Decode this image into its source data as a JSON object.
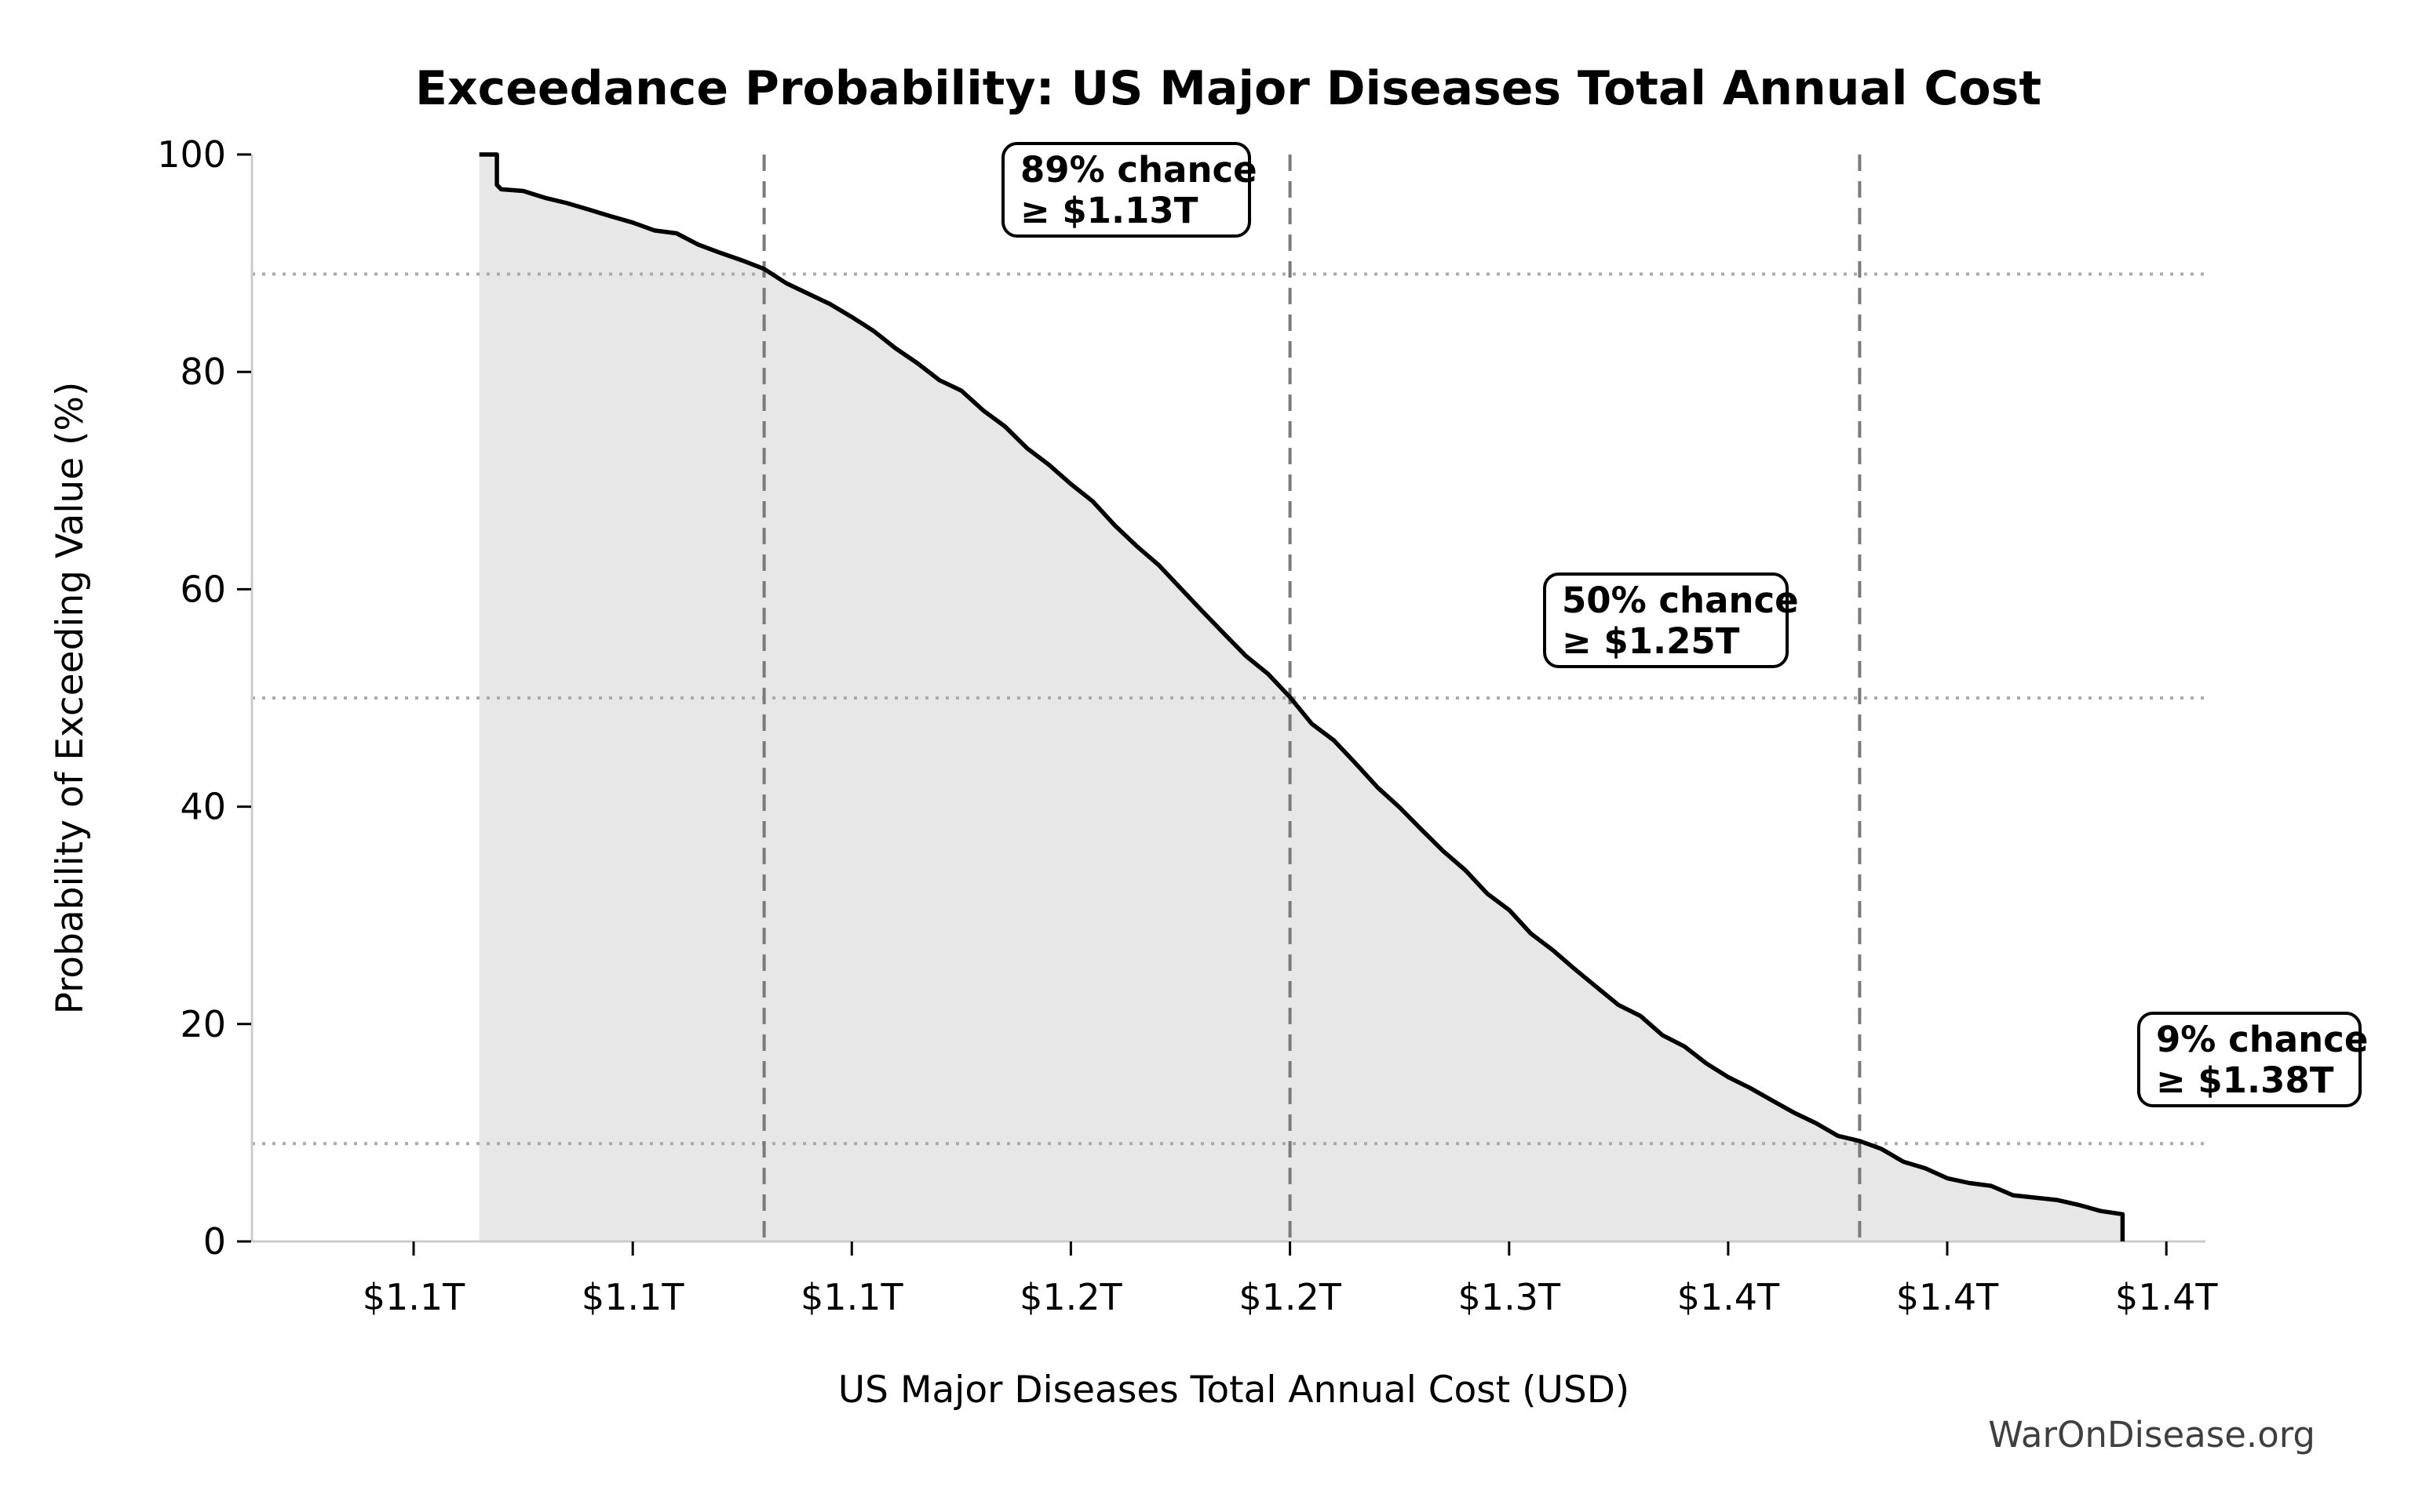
{
  "title": "Exceedance Probability: US Major Diseases Total Annual Cost",
  "watermark": "WarOnDisease.org",
  "colors": {
    "curve": "#000000",
    "area_fill": "#e7e7e7",
    "dashed_line": "#7a7a7a",
    "dotted_line": "#ababab",
    "spine": "#cccccc",
    "tick": "#000000",
    "annotation_border": "#000000",
    "annotation_bg": "#ffffff",
    "watermark": "#3f3f3f"
  },
  "chart_data": {
    "type": "line",
    "title": "Exceedance Probability: US Major Diseases Total Annual Cost",
    "xlabel": "US Major Diseases Total Annual Cost (USD)",
    "ylabel": "Probability of Exceeding Value (%)",
    "x_unit": "trillion_usd",
    "xlim": [
      1.013,
      1.459
    ],
    "ylim": [
      0,
      100
    ],
    "grid": "reference-lines-only",
    "x_ticks": {
      "values": [
        1.05,
        1.1,
        1.15,
        1.2,
        1.25,
        1.3,
        1.35,
        1.4,
        1.45
      ],
      "labels": [
        "$1.1T",
        "$1.1T",
        "$1.1T",
        "$1.2T",
        "$1.2T",
        "$1.3T",
        "$1.4T",
        "$1.4T",
        "$1.4T"
      ]
    },
    "y_ticks": {
      "values": [
        0,
        20,
        40,
        60,
        80,
        100
      ],
      "labels": [
        "0",
        "20",
        "40",
        "60",
        "80",
        "100"
      ]
    },
    "reference_lines": {
      "vertical_dashed_x": [
        1.13,
        1.25,
        1.38
      ],
      "horizontal_dotted_y": [
        89,
        50,
        9
      ]
    },
    "annotations": [
      {
        "line1": "89% chance",
        "line2": "≥ $1.13T",
        "x": 1.13,
        "y": 89
      },
      {
        "line1": "50% chance",
        "line2": "≥ $1.25T",
        "x": 1.25,
        "y": 50
      },
      {
        "line1": "9% chance",
        "line2": "≥ $1.38T",
        "x": 1.38,
        "y": 9
      }
    ],
    "series": [
      {
        "name": "exceedance-curve",
        "points": [
          [
            1.065,
            100
          ],
          [
            1.069,
            100
          ],
          [
            1.069,
            97.2
          ],
          [
            1.07,
            96.8
          ],
          [
            1.075,
            96.4
          ],
          [
            1.08,
            96.0
          ],
          [
            1.085,
            95.5
          ],
          [
            1.09,
            95.0
          ],
          [
            1.095,
            94.5
          ],
          [
            1.1,
            93.9
          ],
          [
            1.105,
            93.3
          ],
          [
            1.11,
            92.6
          ],
          [
            1.115,
            91.8
          ],
          [
            1.12,
            91.0
          ],
          [
            1.125,
            90.1
          ],
          [
            1.13,
            89.2
          ],
          [
            1.135,
            88.2
          ],
          [
            1.14,
            87.2
          ],
          [
            1.145,
            86.1
          ],
          [
            1.15,
            84.9
          ],
          [
            1.155,
            83.6
          ],
          [
            1.16,
            82.3
          ],
          [
            1.165,
            80.9
          ],
          [
            1.17,
            79.5
          ],
          [
            1.175,
            78.0
          ],
          [
            1.18,
            76.5
          ],
          [
            1.185,
            74.9
          ],
          [
            1.19,
            73.2
          ],
          [
            1.195,
            71.5
          ],
          [
            1.2,
            69.7
          ],
          [
            1.205,
            67.9
          ],
          [
            1.21,
            66.0
          ],
          [
            1.215,
            64.1
          ],
          [
            1.22,
            62.1
          ],
          [
            1.225,
            60.2
          ],
          [
            1.23,
            58.2
          ],
          [
            1.235,
            56.2
          ],
          [
            1.24,
            54.1
          ],
          [
            1.245,
            52.1
          ],
          [
            1.25,
            50.0
          ],
          [
            1.255,
            47.9
          ],
          [
            1.26,
            45.9
          ],
          [
            1.265,
            43.8
          ],
          [
            1.27,
            41.8
          ],
          [
            1.275,
            39.8
          ],
          [
            1.28,
            37.9
          ],
          [
            1.285,
            35.9
          ],
          [
            1.29,
            34.0
          ],
          [
            1.295,
            32.1
          ],
          [
            1.3,
            30.3
          ],
          [
            1.305,
            28.5
          ],
          [
            1.31,
            26.8
          ],
          [
            1.315,
            25.1
          ],
          [
            1.32,
            23.5
          ],
          [
            1.325,
            22.0
          ],
          [
            1.33,
            20.5
          ],
          [
            1.335,
            19.1
          ],
          [
            1.34,
            17.7
          ],
          [
            1.345,
            16.4
          ],
          [
            1.35,
            15.1
          ],
          [
            1.355,
            13.9
          ],
          [
            1.36,
            12.8
          ],
          [
            1.365,
            11.8
          ],
          [
            1.37,
            10.8
          ],
          [
            1.375,
            9.9
          ],
          [
            1.38,
            9.0
          ],
          [
            1.385,
            8.2
          ],
          [
            1.39,
            7.4
          ],
          [
            1.395,
            6.7
          ],
          [
            1.4,
            6.1
          ],
          [
            1.405,
            5.5
          ],
          [
            1.41,
            5.0
          ],
          [
            1.415,
            4.5
          ],
          [
            1.42,
            4.0
          ],
          [
            1.425,
            3.6
          ],
          [
            1.43,
            3.2
          ],
          [
            1.435,
            2.8
          ],
          [
            1.44,
            2.5
          ],
          [
            1.44,
            0
          ]
        ]
      }
    ]
  }
}
